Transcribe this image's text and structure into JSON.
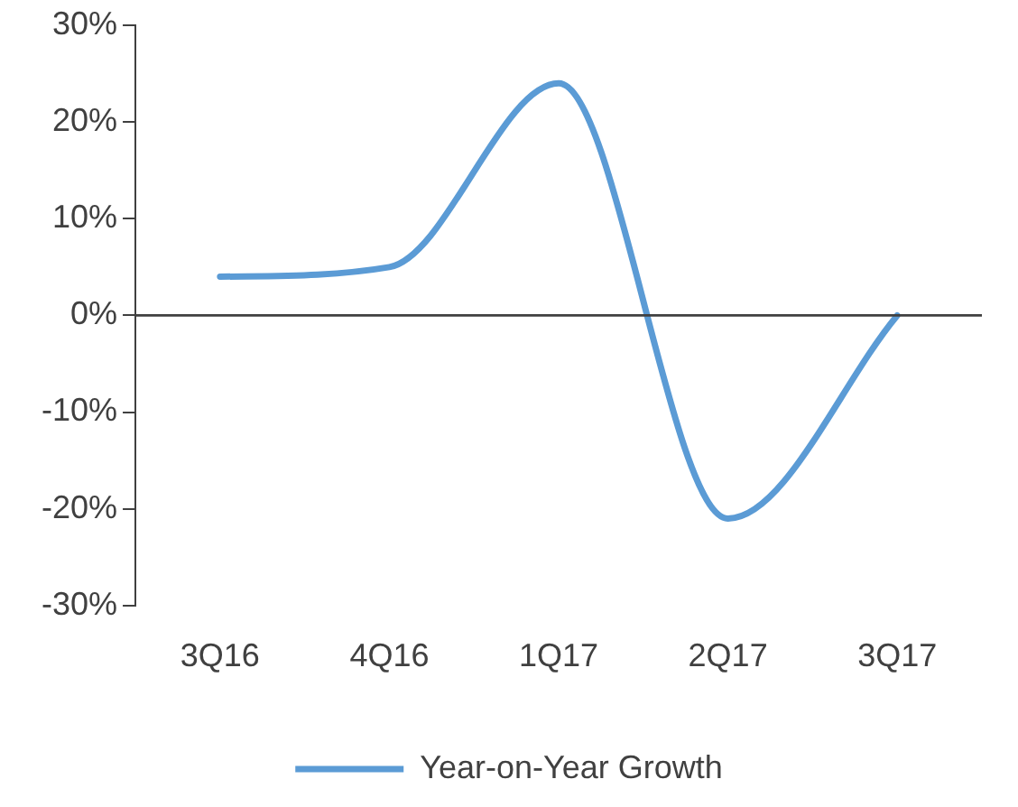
{
  "chart_data": {
    "type": "line",
    "categories": [
      "3Q16",
      "4Q16",
      "1Q17",
      "2Q17",
      "3Q17"
    ],
    "series": [
      {
        "name": "Year-on-Year Growth",
        "color": "#5b9bd5",
        "values": [
          4,
          5,
          24,
          -21,
          0
        ]
      }
    ],
    "ylim": [
      -30,
      30
    ],
    "yticks": [
      {
        "value": -30,
        "label": "-30%"
      },
      {
        "value": -20,
        "label": "-20%"
      },
      {
        "value": -10,
        "label": "-10%"
      },
      {
        "value": 0,
        "label": "0%"
      },
      {
        "value": 10,
        "label": "10%"
      },
      {
        "value": 20,
        "label": "20%"
      },
      {
        "value": 30,
        "label": "30%"
      }
    ],
    "ref_lines": [
      {
        "axis": "y",
        "value": 0,
        "color": "#404040"
      }
    ],
    "grid": false,
    "legend": "bottom",
    "marker": "none",
    "line_style": "solid"
  }
}
